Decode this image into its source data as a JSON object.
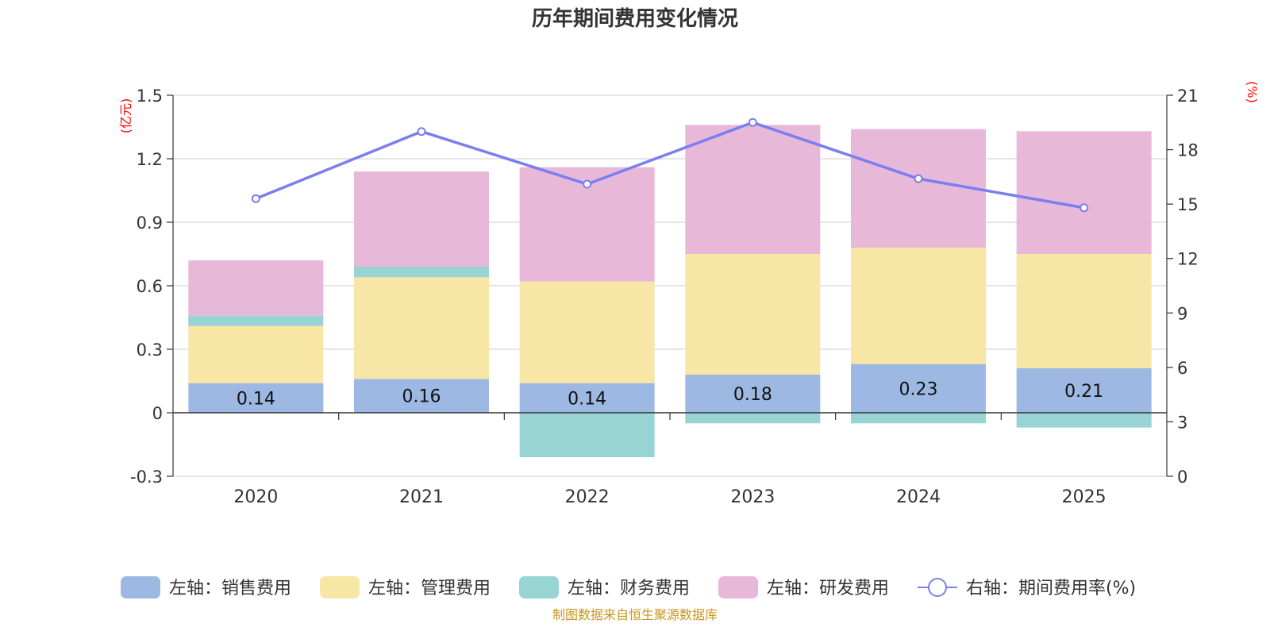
{
  "chart_data": {
    "type": "bar",
    "title": "历年期间费用变化情况",
    "categories": [
      "2020",
      "2021",
      "2022",
      "2023",
      "2024",
      "2025"
    ],
    "left_axis": {
      "unit_label": "(亿元)",
      "ylim": [
        -0.3,
        1.5
      ],
      "ticks": [
        "-0.3",
        "0",
        "0.3",
        "0.6",
        "0.9",
        "1.2",
        "1.5"
      ]
    },
    "right_axis": {
      "unit_label": "(%)",
      "ylim": [
        0,
        21
      ],
      "ticks": [
        "0",
        "3",
        "6",
        "9",
        "12",
        "15",
        "18",
        "21"
      ]
    },
    "series": [
      {
        "name": "左轴：销售费用",
        "axis": "left",
        "kind": "stacked-bar",
        "color": "#9db8e2",
        "values": [
          0.14,
          0.16,
          0.14,
          0.18,
          0.23,
          0.21
        ],
        "labels": [
          "0.14",
          "0.16",
          "0.14",
          "0.18",
          "0.23",
          "0.21"
        ]
      },
      {
        "name": "左轴：管理费用",
        "axis": "left",
        "kind": "stacked-bar",
        "color": "#f7e6a6",
        "values": [
          0.27,
          0.48,
          0.48,
          0.57,
          0.55,
          0.54
        ]
      },
      {
        "name": "左轴：财务费用",
        "axis": "left",
        "kind": "stacked-bar",
        "color": "#98d4d4",
        "values": [
          0.05,
          0.05,
          -0.21,
          -0.05,
          -0.05,
          -0.07
        ]
      },
      {
        "name": "左轴：研发费用",
        "axis": "left",
        "kind": "stacked-bar",
        "color": "#e8b8d8",
        "values": [
          0.26,
          0.45,
          0.54,
          0.61,
          0.56,
          0.58
        ]
      },
      {
        "name": "右轴：期间费用率(%)",
        "axis": "right",
        "kind": "line",
        "color": "#7b7ef0",
        "values": [
          15.3,
          19.0,
          16.1,
          19.5,
          16.4,
          14.8
        ]
      }
    ],
    "legend_position": "bottom",
    "grid": true
  },
  "source": "制图数据来自恒生聚源数据库",
  "colors": {
    "title": "#333333",
    "unit": "#ff0000",
    "source": "#c8961e",
    "grid": "#cccccc",
    "axis": "#333333"
  }
}
